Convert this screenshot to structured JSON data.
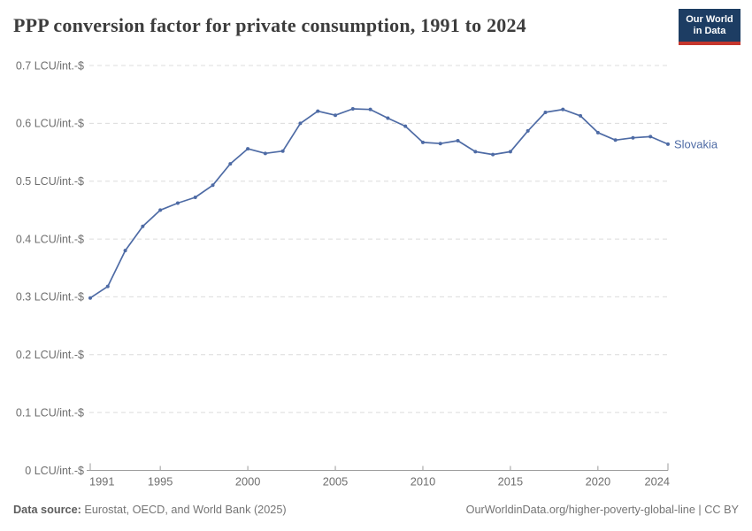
{
  "header": {
    "title": "PPP conversion factor for private consumption, 1991 to 2024",
    "logo_line1": "Our World",
    "logo_line2": "in Data"
  },
  "chart_data": {
    "type": "line",
    "title": "PPP conversion factor for private consumption, 1991 to 2024",
    "xlabel": "",
    "ylabel": "LCU/int.-$",
    "xlim": [
      1991,
      2024
    ],
    "ylim": [
      0,
      0.7
    ],
    "grid": true,
    "legend_position": "end-of-line",
    "x_ticks": [
      1991,
      1995,
      2000,
      2005,
      2010,
      2015,
      2020,
      2024
    ],
    "y_ticks": [
      {
        "value": 0,
        "label": "0 LCU/int.-$"
      },
      {
        "value": 0.1,
        "label": "0.1 LCU/int.-$"
      },
      {
        "value": 0.2,
        "label": "0.2 LCU/int.-$"
      },
      {
        "value": 0.3,
        "label": "0.3 LCU/int.-$"
      },
      {
        "value": 0.4,
        "label": "0.4 LCU/int.-$"
      },
      {
        "value": 0.5,
        "label": "0.5 LCU/int.-$"
      },
      {
        "value": 0.6,
        "label": "0.6 LCU/int.-$"
      },
      {
        "value": 0.7,
        "label": "0.7 LCU/int.-$"
      }
    ],
    "series": [
      {
        "name": "Slovakia",
        "color": "#4e6ba5",
        "x": [
          1991,
          1992,
          1993,
          1994,
          1995,
          1996,
          1997,
          1998,
          1999,
          2000,
          2001,
          2002,
          2003,
          2004,
          2005,
          2006,
          2007,
          2008,
          2009,
          2010,
          2011,
          2012,
          2013,
          2014,
          2015,
          2016,
          2017,
          2018,
          2019,
          2020,
          2021,
          2022,
          2023,
          2024
        ],
        "values": [
          0.298,
          0.318,
          0.38,
          0.422,
          0.45,
          0.462,
          0.472,
          0.493,
          0.53,
          0.556,
          0.548,
          0.552,
          0.6,
          0.621,
          0.614,
          0.625,
          0.624,
          0.609,
          0.595,
          0.567,
          0.565,
          0.57,
          0.551,
          0.546,
          0.551,
          0.587,
          0.619,
          0.624,
          0.613,
          0.584,
          0.571,
          0.575,
          0.577,
          0.564
        ]
      }
    ]
  },
  "footer": {
    "datasource_label": "Data source:",
    "datasource_value": " Eurostat, OECD, and World Bank (2025)",
    "link": "OurWorldinData.org/higher-poverty-global-line | CC BY"
  },
  "colors": {
    "line": "#4e6ba5",
    "gridline": "#dcdcdc",
    "axis": "#9c9c9c",
    "tick_label": "#6e6e6e",
    "title": "#3d3d3d",
    "logo_bg": "#1d3d63",
    "logo_bar": "#c5362d"
  }
}
